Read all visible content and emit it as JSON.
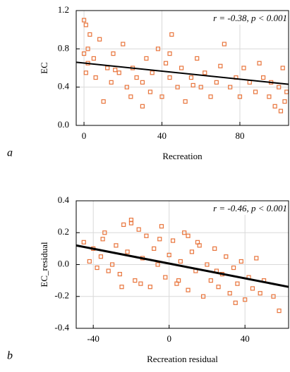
{
  "chart_data": [
    {
      "type": "scatter",
      "panel": "a",
      "xlabel": "Recreation",
      "ylabel": "EC",
      "annotation": "r = -0.38, p < 0.001",
      "color": "#e8743b",
      "grid": true,
      "xlim": [
        -4,
        105
      ],
      "ylim": [
        0,
        1.2
      ],
      "xticks": [
        0,
        40,
        80
      ],
      "yticks": [
        {
          "value": 0,
          "label": "0.0"
        },
        0.4,
        0.8,
        1.2
      ],
      "x": [
        0,
        0,
        1,
        1,
        2,
        2,
        3,
        5,
        6,
        8,
        10,
        12,
        14,
        15,
        18,
        20,
        22,
        24,
        25,
        27,
        30,
        32,
        34,
        35,
        38,
        40,
        42,
        44,
        45,
        48,
        50,
        52,
        55,
        58,
        60,
        62,
        65,
        68,
        70,
        72,
        75,
        78,
        80,
        82,
        85,
        88,
        90,
        92,
        95,
        96,
        98,
        100,
        101,
        102,
        103,
        104,
        44,
        56,
        30,
        16
      ],
      "values": [
        1.1,
        0.75,
        1.05,
        0.55,
        0.8,
        0.65,
        0.95,
        0.7,
        0.5,
        0.9,
        0.25,
        0.6,
        0.45,
        0.75,
        0.55,
        0.85,
        0.4,
        0.3,
        0.6,
        0.5,
        0.45,
        0.7,
        0.35,
        0.55,
        0.8,
        0.3,
        0.65,
        0.5,
        0.95,
        0.4,
        0.6,
        0.25,
        0.5,
        0.7,
        0.4,
        0.55,
        0.3,
        0.45,
        0.62,
        0.85,
        0.4,
        0.5,
        0.3,
        0.6,
        0.45,
        0.35,
        0.65,
        0.5,
        0.3,
        0.45,
        0.2,
        0.4,
        0.15,
        0.6,
        0.25,
        0.35,
        0.75,
        0.42,
        0.2,
        0.58
      ],
      "fit": {
        "x": [
          -4,
          105
        ],
        "y": [
          0.66,
          0.43
        ],
        "color": "#000000"
      }
    },
    {
      "type": "scatter",
      "panel": "b",
      "xlabel": "Recreation residual",
      "ylabel": "EC_residual",
      "annotation": "r = -0.46, p < 0.001",
      "color": "#e8743b",
      "grid": true,
      "xlim": [
        -49,
        63
      ],
      "ylim": [
        -0.4,
        0.4
      ],
      "xticks": [
        -40,
        0,
        40
      ],
      "yticks": [
        -0.4,
        -0.2,
        {
          "value": 0,
          "label": "0.0"
        },
        0.2,
        0.4
      ],
      "x": [
        -45,
        -42,
        -40,
        -38,
        -36,
        -34,
        -32,
        -30,
        -28,
        -26,
        -24,
        -22,
        -20,
        -18,
        -16,
        -14,
        -12,
        -10,
        -8,
        -6,
        -4,
        -2,
        0,
        2,
        4,
        6,
        8,
        10,
        12,
        14,
        16,
        18,
        20,
        22,
        24,
        26,
        28,
        30,
        32,
        34,
        36,
        38,
        40,
        42,
        44,
        46,
        48,
        50,
        55,
        58,
        -25,
        -15,
        -5,
        5,
        15,
        25,
        -35,
        -20,
        10,
        35
      ],
      "values": [
        0.14,
        0.02,
        0.1,
        -0.02,
        0.05,
        0.2,
        -0.04,
        0.0,
        0.12,
        -0.06,
        0.25,
        0.08,
        0.28,
        -0.1,
        0.22,
        0.04,
        0.18,
        -0.14,
        0.1,
        0.0,
        0.24,
        -0.08,
        0.06,
        0.15,
        -0.12,
        0.02,
        0.2,
        -0.16,
        0.08,
        -0.04,
        0.12,
        -0.2,
        0.0,
        -0.1,
        0.1,
        -0.14,
        -0.06,
        0.05,
        -0.18,
        -0.02,
        -0.12,
        0.02,
        -0.22,
        -0.08,
        -0.15,
        0.04,
        -0.18,
        -0.1,
        -0.2,
        -0.29,
        -0.14,
        -0.12,
        0.16,
        -0.1,
        0.14,
        -0.04,
        0.16,
        0.26,
        0.18,
        -0.24
      ],
      "fit": {
        "x": [
          -49,
          63
        ],
        "y": [
          0.12,
          -0.14
        ],
        "color": "#000000"
      }
    }
  ]
}
